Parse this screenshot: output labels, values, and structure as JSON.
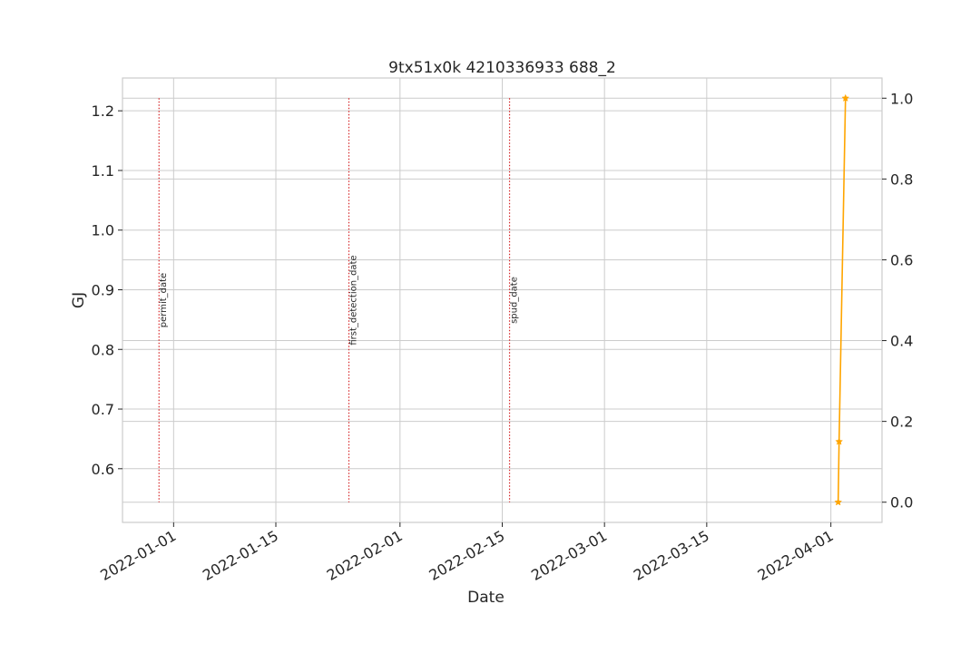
{
  "chart_data": {
    "type": "line",
    "title": "9tx51x0k 4210336933 688_2",
    "xlabel": "Date",
    "ylabel_left": "GJ",
    "ylabel_left_color": "#1f77b4",
    "x_tick_labels": [
      "2022-01-01",
      "2022-01-15",
      "2022-02-01",
      "2022-02-15",
      "2022-03-01",
      "2022-03-15",
      "2022-04-01"
    ],
    "x_range": [
      "2021-12-25",
      "2022-04-08"
    ],
    "y_left": {
      "ticks": [
        "0.6",
        "0.7",
        "0.8",
        "0.9",
        "1.0",
        "1.1",
        "1.2"
      ],
      "range": [
        0.51,
        1.255
      ]
    },
    "y_right": {
      "ticks": [
        "0.0",
        "0.2",
        "0.4",
        "0.6",
        "0.8",
        "1.0"
      ],
      "range": [
        -0.05,
        1.05
      ]
    },
    "grid": true,
    "events": [
      {
        "label": "permit_date",
        "date": "2021-12-30",
        "color": "#d62728"
      },
      {
        "label": "first_detection_date",
        "date": "2022-01-25",
        "color": "#d62728"
      },
      {
        "label": "spud_date",
        "date": "2022-02-16",
        "color": "#d62728"
      }
    ],
    "series": [
      {
        "axis": "right",
        "color": "#ffa500",
        "marker": "star",
        "x": [
          "2022-04-02",
          "2022-04-02",
          "2022-04-03"
        ],
        "y": [
          0.0,
          0.15,
          1.0
        ]
      }
    ]
  }
}
